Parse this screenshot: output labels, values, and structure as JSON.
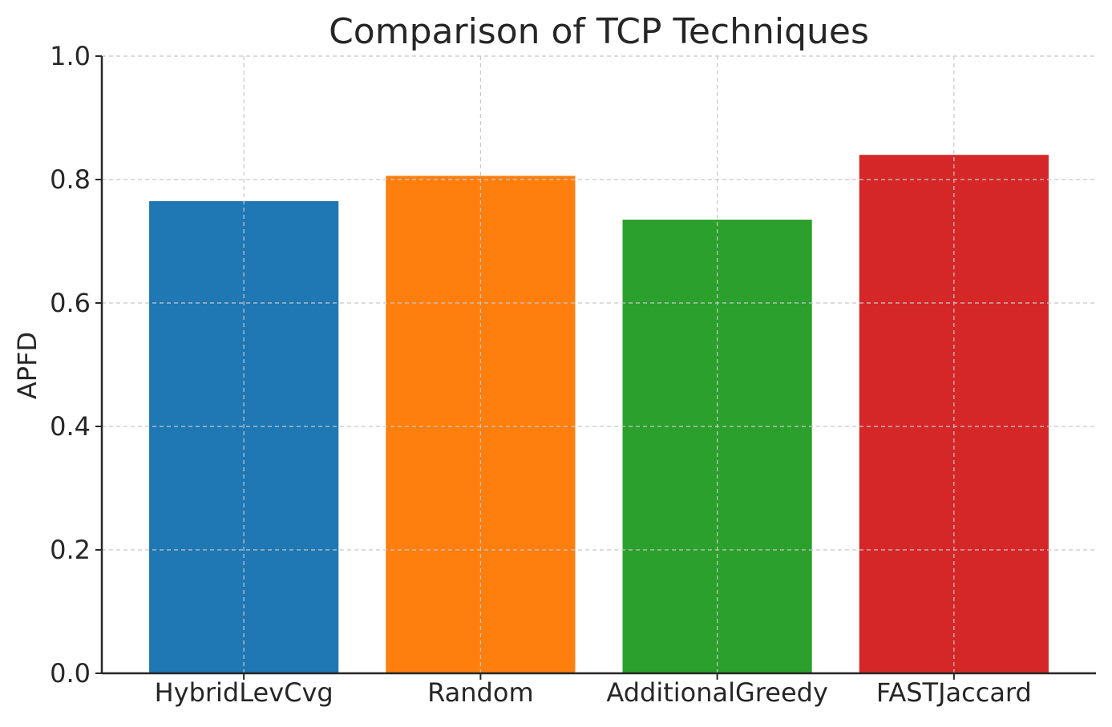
{
  "chart_data": {
    "type": "bar",
    "title": "Comparison of TCP Techniques",
    "xlabel": "",
    "ylabel": "APFD",
    "categories": [
      "HybridLevCvg",
      "Random",
      "AdditionalGreedy",
      "FASTJaccard"
    ],
    "values": [
      0.765,
      0.806,
      0.735,
      0.84
    ],
    "colors": [
      "#1f77b4",
      "#ff7f0e",
      "#2ca02c",
      "#d62728"
    ],
    "ylim": [
      0,
      1.0
    ],
    "yticks": [
      0.0,
      0.2,
      0.4,
      0.6,
      0.8,
      1.0
    ],
    "ytick_labels": [
      "0.0",
      "0.2",
      "0.4",
      "0.6",
      "0.8",
      "1.0"
    ],
    "grid": true,
    "legend": "none"
  }
}
